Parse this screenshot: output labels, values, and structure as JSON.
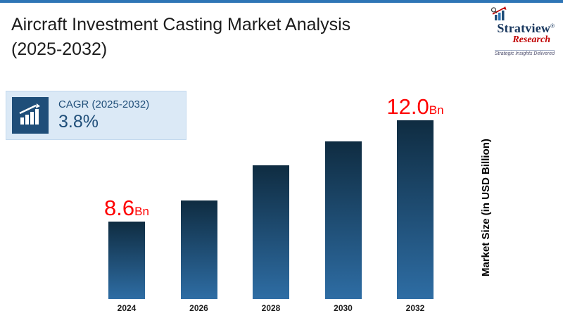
{
  "page": {
    "title": "Aircraft Investment Casting Market Analysis (2025-2032)"
  },
  "logo": {
    "name_part1": "Stratview",
    "registered": "®",
    "name_part2": "Research",
    "tagline": "Strategic Insights Delivered",
    "color_primary": "#17365d",
    "color_secondary": "#c00000"
  },
  "cagr_box": {
    "label": "CAGR (2025-2032)",
    "value": "3.8%",
    "accent_color": "#1f4e79",
    "background_color": "#dbe9f6",
    "icon": "bar-chart-up-arrow"
  },
  "chart_data": {
    "type": "bar",
    "title": "Aircraft Investment Casting Market Analysis (2025-2032)",
    "categories": [
      "2024",
      "2026",
      "2028",
      "2030",
      "2032"
    ],
    "values": [
      8.6,
      9.3,
      10.5,
      11.3,
      12.0
    ],
    "bar_labels": [
      "8.6",
      "",
      "",
      "",
      "12.0"
    ],
    "unit": "Bn",
    "xlabel": "",
    "ylabel": "Market Size (in USD Billion)",
    "ylim": [
      6,
      13
    ],
    "grid": false,
    "legend": "none",
    "bar_color_top": "#0f2c41",
    "bar_color_bottom": "#2e6da4",
    "value_label_color": "#fe0000"
  },
  "decor": {
    "top_rule_color": "#2e75b6"
  }
}
